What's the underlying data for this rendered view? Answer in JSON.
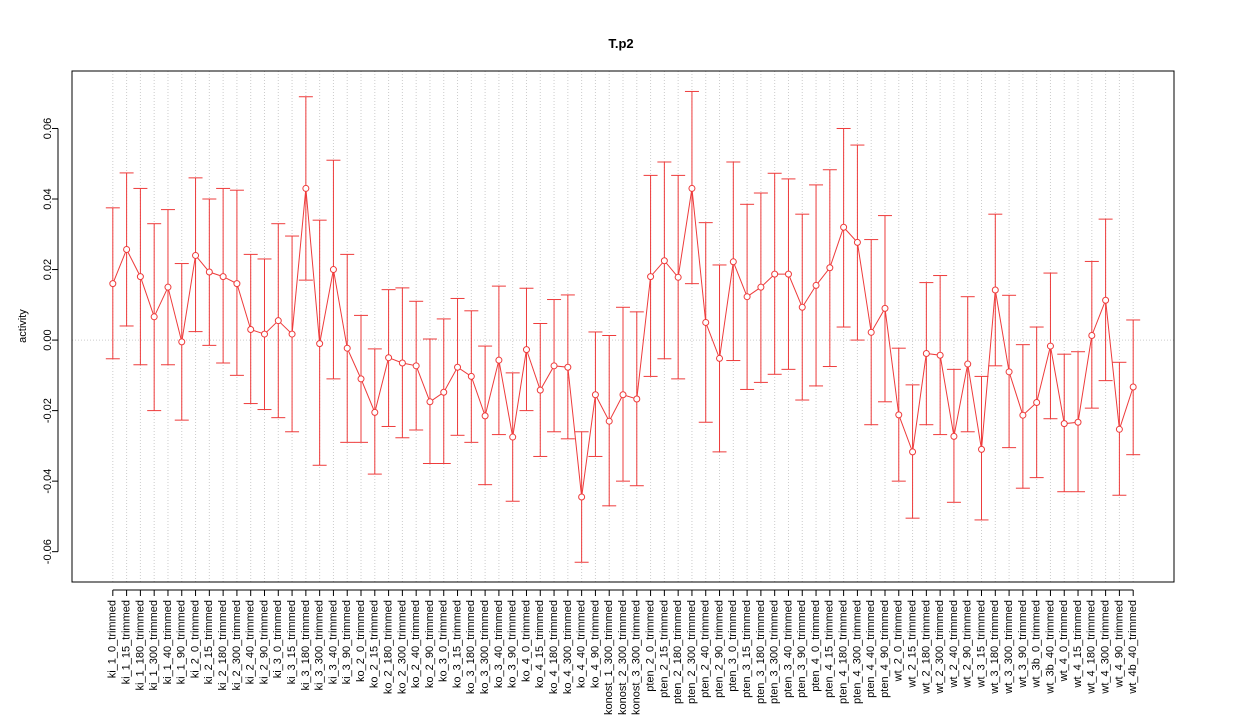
{
  "chart_data": {
    "type": "errorbar",
    "title": "T.p2",
    "y_label": "activity",
    "categories": [
      "ki_1_0_trimmed",
      "ki_1_15_trimmed",
      "ki_1_180_trimmed",
      "ki_1_300_trimmed",
      "ki_1_40_trimmed",
      "ki_1_90_trimmed",
      "ki_2_0_trimmed",
      "ki_2_15_trimmed",
      "ki_2_180_trimmed",
      "ki_2_300_trimmed",
      "ki_2_40_trimmed",
      "ki_2_90_trimmed",
      "ki_3_0_trimmed",
      "ki_3_15_trimmed",
      "ki_3_180_trimmed",
      "ki_3_300_trimmed",
      "ki_3_40_trimmed",
      "ki_3_90_trimmed",
      "ko_2_0_trimmed",
      "ko_2_15_trimmed",
      "ko_2_180_trimmed",
      "ko_2_300_trimmed",
      "ko_2_40_trimmed",
      "ko_2_90_trimmed",
      "ko_3_0_trimmed",
      "ko_3_15_trimmed",
      "ko_3_180_trimmed",
      "ko_3_300_trimmed",
      "ko_3_40_trimmed",
      "ko_3_90_trimmed",
      "ko_4_0_trimmed",
      "ko_4_15_trimmed",
      "ko_4_180_trimmed",
      "ko_4_300_trimmed",
      "ko_4_40_trimmed",
      "ko_4_90_trimmed",
      "konost_1_300_trimmed",
      "konost_2_300_trimmed",
      "konost_3_300_trimmed",
      "pten_2_0_trimmed",
      "pten_2_15_trimmed",
      "pten_2_180_trimmed",
      "pten_2_300_trimmed",
      "pten_2_40_trimmed",
      "pten_2_90_trimmed",
      "pten_3_0_trimmed",
      "pten_3_15_trimmed",
      "pten_3_180_trimmed",
      "pten_3_300_trimmed",
      "pten_3_40_trimmed",
      "pten_3_90_trimmed",
      "pten_4_0_trimmed",
      "pten_4_15_trimmed",
      "pten_4_180_trimmed",
      "pten_4_300_trimmed",
      "pten_4_40_trimmed",
      "pten_4_90_trimmed",
      "wt_2_0_trimmed",
      "wt_2_15_trimmed",
      "wt_2_180_trimmed",
      "wt_2_300_trimmed",
      "wt_2_40_trimmed",
      "wt_2_90_trimmed",
      "wt_3_15_trimmed",
      "wt_3_180_trimmed",
      "wt_3_300_trimmed",
      "wt_3_90_trimmed",
      "wt_3b_0_trimmed",
      "wt_3b_40_trimmed",
      "wt_4_0_trimmed",
      "wt_4_15_trimmed",
      "wt_4_180_trimmed",
      "wt_4_300_trimmed",
      "wt_4_90_trimmed",
      "wt_4b_40_trimmed"
    ],
    "color": "#ee3b3b",
    "values": [
      0.016,
      0.0257,
      0.018,
      0.0066,
      0.015,
      -0.0005,
      0.024,
      0.0193,
      0.018,
      0.016,
      0.003,
      0.0017,
      0.0055,
      0.0017,
      0.043,
      -0.001,
      0.02,
      -0.0023,
      -0.011,
      -0.0205,
      -0.005,
      -0.0065,
      -0.0073,
      -0.0175,
      -0.0148,
      -0.0077,
      -0.0103,
      -0.0215,
      -0.0057,
      -0.0275,
      -0.0027,
      -0.0142,
      -0.0073,
      -0.0077,
      -0.0445,
      -0.0155,
      -0.023,
      -0.0155,
      -0.0167,
      0.018,
      0.0225,
      0.0178,
      0.043,
      0.005,
      -0.0052,
      0.0222,
      0.0123,
      0.015,
      0.0187,
      0.0187,
      0.0093,
      0.0155,
      0.0205,
      0.032,
      0.0277,
      0.0022,
      0.009,
      -0.0212,
      -0.0317,
      -0.0038,
      -0.0043,
      -0.0273,
      -0.0068,
      -0.031,
      0.0142,
      -0.009,
      -0.0213,
      -0.0177,
      -0.0017,
      -0.0237,
      -0.0233,
      0.0013,
      0.0113,
      -0.0253,
      -0.0133
    ],
    "upper": [
      0.0375,
      0.0474,
      0.043,
      0.033,
      0.037,
      0.0217,
      0.046,
      0.04,
      0.043,
      0.0425,
      0.0243,
      0.023,
      0.033,
      0.0295,
      0.069,
      0.034,
      0.051,
      0.0243,
      0.007,
      -0.0025,
      0.0143,
      0.0148,
      0.011,
      0.0003,
      0.006,
      0.0118,
      0.0083,
      -0.0017,
      0.0153,
      -0.0093,
      0.0147,
      0.0047,
      0.0115,
      0.0128,
      -0.026,
      0.0023,
      0.0013,
      0.0093,
      0.008,
      0.0467,
      0.0505,
      0.0467,
      0.0705,
      0.0333,
      0.0213,
      0.0505,
      0.0385,
      0.0417,
      0.0473,
      0.0457,
      0.0357,
      0.044,
      0.0483,
      0.06,
      0.0553,
      0.0285,
      0.0353,
      -0.0023,
      -0.0127,
      0.0163,
      0.0183,
      -0.0083,
      0.0123,
      -0.0103,
      0.0357,
      0.0127,
      -0.0013,
      0.0037,
      0.019,
      -0.004,
      -0.0033,
      0.0223,
      0.0343,
      -0.0063,
      0.0057
    ],
    "lower": [
      -0.0053,
      0.004,
      -0.007,
      -0.02,
      -0.007,
      -0.0227,
      0.0024,
      -0.0015,
      -0.0065,
      -0.01,
      -0.018,
      -0.0197,
      -0.022,
      -0.026,
      0.017,
      -0.0355,
      -0.011,
      -0.029,
      -0.029,
      -0.038,
      -0.0245,
      -0.0277,
      -0.0255,
      -0.035,
      -0.035,
      -0.027,
      -0.029,
      -0.041,
      -0.0268,
      -0.0457,
      -0.02,
      -0.033,
      -0.026,
      -0.028,
      -0.063,
      -0.033,
      -0.047,
      -0.04,
      -0.0413,
      -0.0103,
      -0.0053,
      -0.011,
      0.016,
      -0.0233,
      -0.0317,
      -0.0058,
      -0.014,
      -0.012,
      -0.0097,
      -0.0083,
      -0.017,
      -0.013,
      -0.0075,
      0.0037,
      0.0,
      -0.024,
      -0.0175,
      -0.04,
      -0.0505,
      -0.024,
      -0.0268,
      -0.046,
      -0.026,
      -0.051,
      -0.0073,
      -0.0305,
      -0.042,
      -0.039,
      -0.0223,
      -0.043,
      -0.043,
      -0.0193,
      -0.0115,
      -0.044,
      -0.0325
    ],
    "ylim": [
      -0.0686,
      0.0763
    ],
    "yticks": [
      -0.06,
      -0.04,
      -0.02,
      {
        "value": 0,
        "label": "0.00"
      },
      0.02,
      0.04,
      0.06
    ],
    "hline": 0,
    "grid": true
  }
}
